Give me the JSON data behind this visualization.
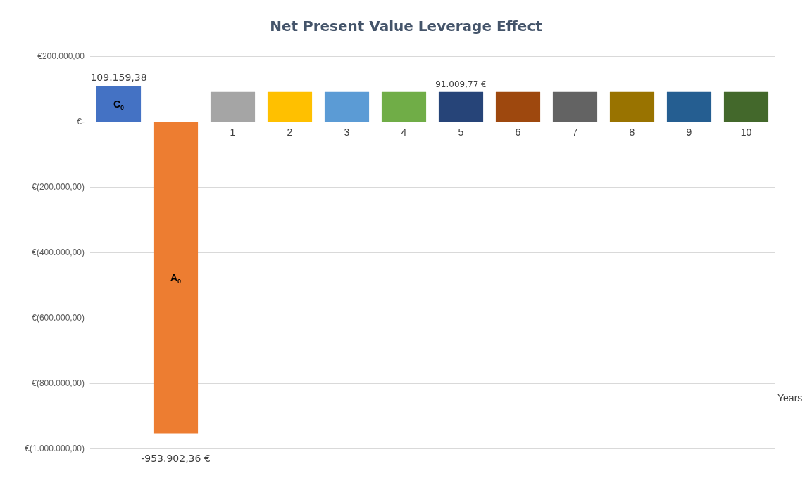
{
  "chart_data": {
    "type": "bar",
    "title": "Net Present Value Leverage Effect",
    "xlabel": "Years",
    "legend": false,
    "grid": "y",
    "categories": [
      null,
      null,
      "1",
      "2",
      "3",
      "4",
      "5",
      "6",
      "7",
      "8",
      "9",
      "10"
    ],
    "series": [
      {
        "name": "C$_{0}$",
        "color": "#4472c4",
        "values": [
          109159.38,
          null,
          null,
          null,
          null,
          null,
          null,
          null,
          null,
          null,
          null,
          null
        ],
        "value_labels": [
          "109.159,38",
          null,
          null,
          null,
          null,
          null,
          null,
          null,
          null,
          null,
          null,
          null
        ]
      },
      {
        "name": "A$_{0}$",
        "color": "#ed7d31",
        "values": [
          null,
          -953902.36,
          null,
          null,
          null,
          null,
          null,
          null,
          null,
          null,
          null,
          null
        ],
        "value_labels": [
          null,
          "-953.902,36 €",
          null,
          null,
          null,
          null,
          null,
          null,
          null,
          null,
          null,
          null
        ]
      },
      {
        "colors": [
          null,
          null,
          "#a5a5a5",
          "#ffc000",
          "#5b9bd5",
          "#70ad47",
          "#264478",
          "#9e480e",
          "#636363",
          "#997300",
          "#255e91",
          "#43682b"
        ],
        "values": [
          null,
          null,
          91009.77,
          91009.77,
          91009.77,
          91009.77,
          91009.77,
          91009.77,
          91009.77,
          91009.77,
          91009.77,
          91009.77
        ],
        "value_labels": [
          null,
          null,
          null,
          null,
          null,
          null,
          "91.009,77 €",
          null,
          null,
          null,
          null,
          null
        ]
      }
    ],
    "ylim": [
      -1000000,
      200000
    ],
    "yticks": [
      {
        "value": -1000000,
        "label": "€(1.000.000,00)"
      },
      {
        "value": -800000,
        "label": "€(800.000,00)"
      },
      {
        "value": -600000,
        "label": "€(600.000,00)"
      },
      {
        "value": -400000,
        "label": "€(400.000,00)"
      },
      {
        "value": -200000,
        "label": "€(200.000,00)"
      },
      {
        "value": 0,
        "label": "€-"
      },
      {
        "value": 200000,
        "label": "€200.000,00"
      }
    ]
  }
}
